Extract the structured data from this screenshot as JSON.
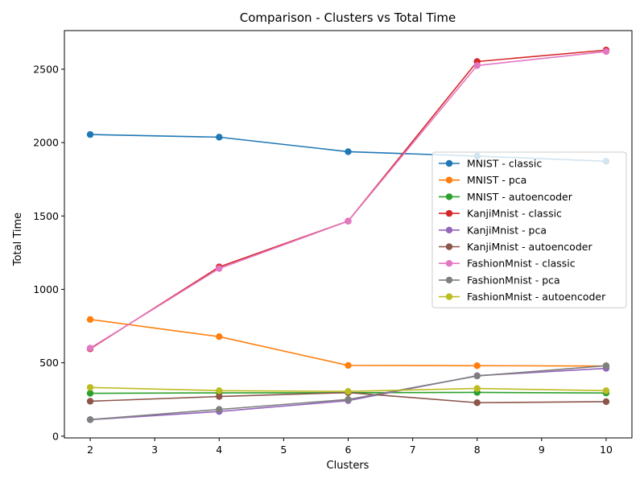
{
  "chart_data": {
    "type": "line",
    "title": "Comparison - Clusters vs Total Time",
    "xlabel": "Clusters",
    "ylabel": "Total Time",
    "x": [
      2,
      4,
      6,
      8,
      10
    ],
    "xlim": [
      1.6,
      10.4
    ],
    "ylim": [
      -12,
      2763
    ],
    "xticks": [
      2,
      3,
      4,
      5,
      6,
      7,
      8,
      9,
      10
    ],
    "yticks": [
      0,
      500,
      1000,
      1500,
      2000,
      2500
    ],
    "grid": false,
    "legend_position": "center-right",
    "markers": true,
    "series": [
      {
        "name": "MNIST - classic",
        "color": "#1f77b4",
        "values": [
          2055,
          2037,
          1938,
          1908,
          1873
        ]
      },
      {
        "name": "MNIST - pca",
        "color": "#ff7f0e",
        "values": [
          795,
          678,
          482,
          480,
          478
        ]
      },
      {
        "name": "MNIST - autoencoder",
        "color": "#2ca02c",
        "values": [
          292,
          295,
          296,
          298,
          294
        ]
      },
      {
        "name": "KanjiMnist - classic",
        "color": "#d62728",
        "values": [
          595,
          1153,
          1465,
          2552,
          2630
        ]
      },
      {
        "name": "KanjiMnist - pca",
        "color": "#9467bd",
        "values": [
          112,
          168,
          242,
          412,
          462
        ]
      },
      {
        "name": "KanjiMnist - autoencoder",
        "color": "#8c564b",
        "values": [
          238,
          270,
          297,
          228,
          235
        ]
      },
      {
        "name": "FashionMnist - classic",
        "color": "#e377c2",
        "values": [
          600,
          1142,
          1465,
          2525,
          2620
        ]
      },
      {
        "name": "FashionMnist - pca",
        "color": "#7f7f7f",
        "values": [
          113,
          182,
          250,
          410,
          480
        ]
      },
      {
        "name": "FashionMnist - autoencoder",
        "color": "#bcbd22",
        "values": [
          332,
          310,
          305,
          325,
          310
        ]
      }
    ]
  }
}
